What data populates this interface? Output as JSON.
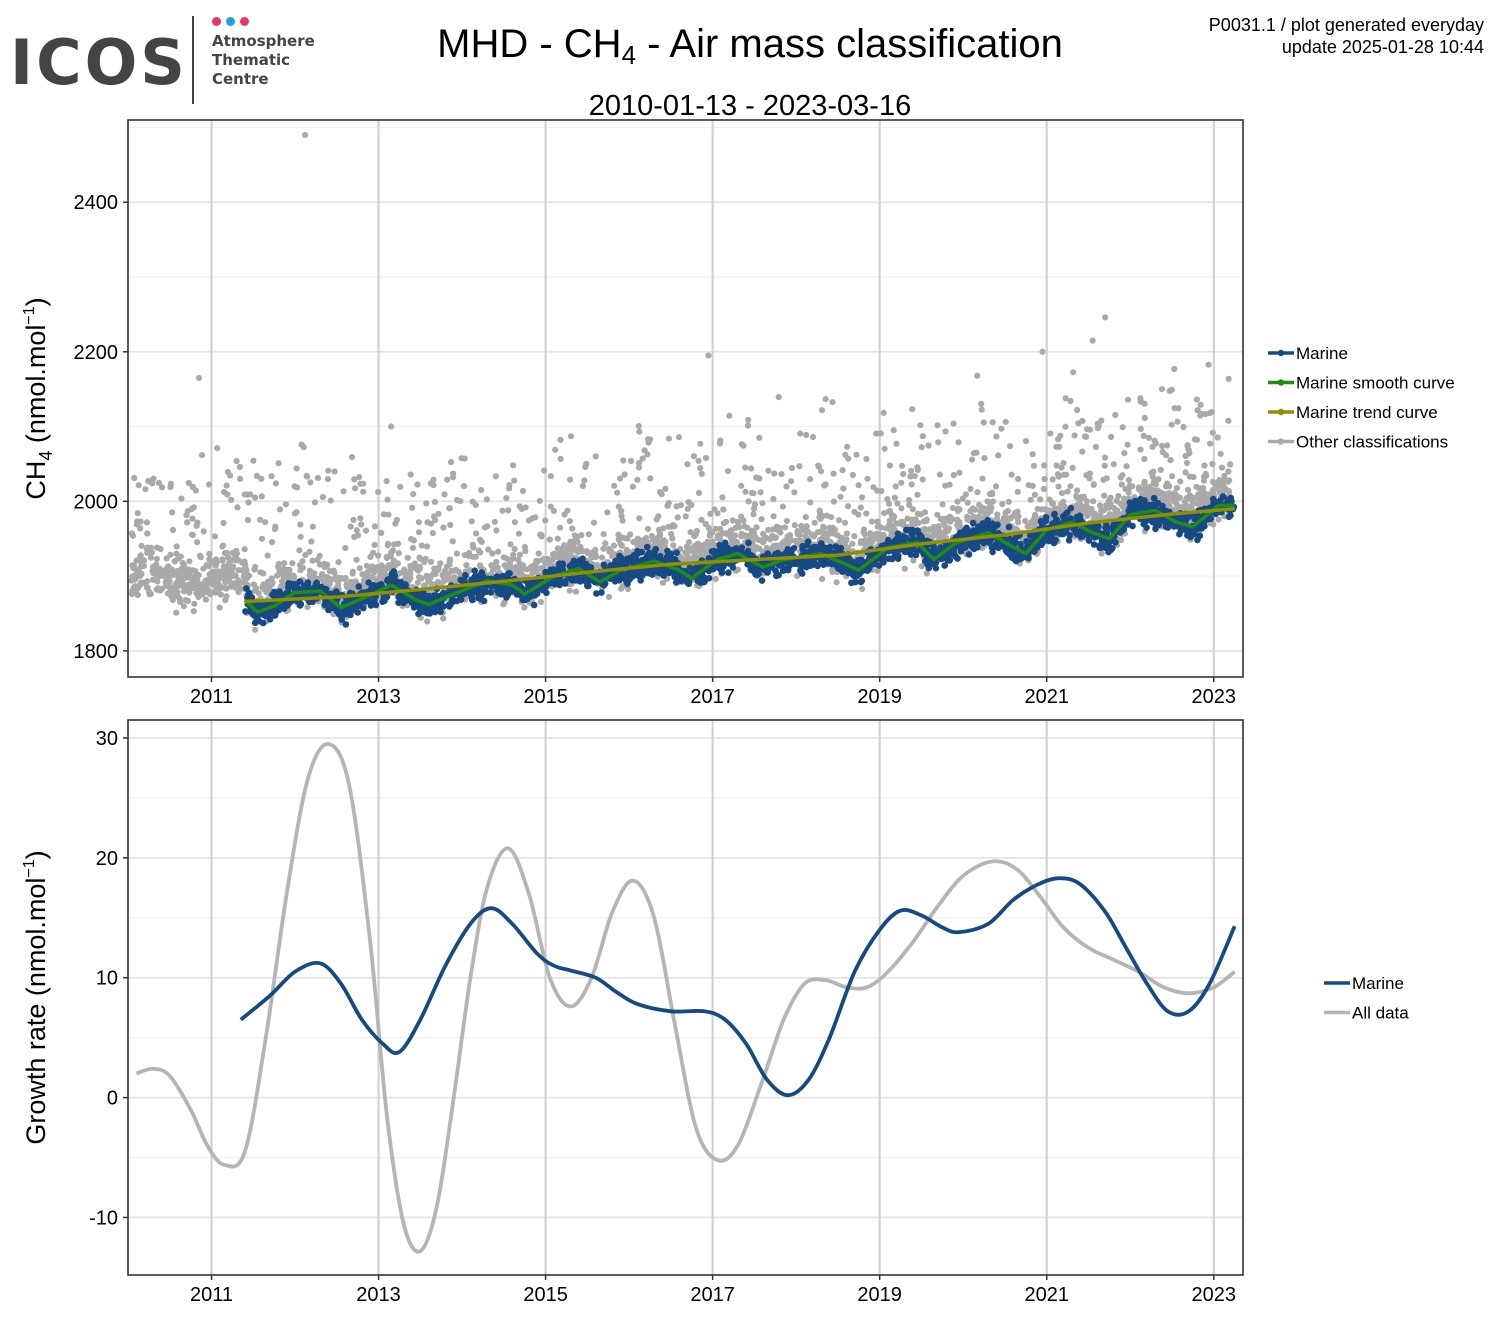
{
  "header": {
    "logo": {
      "word": "ICOS",
      "line1": "Atmosphere",
      "line2": "Thematic",
      "line3": "Centre",
      "dot_colors": [
        "#e8336e",
        "#1ba1e2",
        "#e8336e"
      ]
    },
    "title_pre": "MHD - CH",
    "title_sub": "4",
    "title_post": " - Air mass classification",
    "subtitle": "2010-01-13 - 2023-03-16",
    "info_line1": "P0031.1 / plot generated everyday",
    "info_line2": "update  2025-01-28 10:44"
  },
  "chart_data": [
    {
      "type": "scatter",
      "title": "MHD - CH4 - Air mass classification",
      "subtitle": "2010-01-13 - 2023-03-16",
      "ylabel_pre": "CH",
      "ylabel_sub": "4",
      "ylabel_post": " (nmol.mol",
      "ylabel_sup": "−1",
      "ylabel_end": ")",
      "xlim": [
        2010.0,
        2023.35
      ],
      "ylim": [
        1765,
        2510
      ],
      "x_ticks": [
        2011,
        2013,
        2015,
        2017,
        2019,
        2021,
        2023
      ],
      "x_tick_labels": [
        "2011",
        "2013",
        "2015",
        "2017",
        "2019",
        "2021",
        "2023"
      ],
      "y_ticks": [
        1800,
        2000,
        2200,
        2400
      ],
      "y_tick_labels": [
        "1800",
        "2000",
        "2200",
        "2400"
      ],
      "grid": true,
      "legend_position": "right",
      "series": [
        {
          "name": "Marine",
          "color": "#174a85",
          "kind": "points",
          "x_range": [
            2011.4,
            2023.25
          ],
          "band_halfwidth": 22,
          "trend_y": [
            [
              2011.4,
              1866
            ],
            [
              2012.5,
              1872
            ],
            [
              2013.5,
              1882
            ],
            [
              2014.5,
              1893
            ],
            [
              2015.5,
              1905
            ],
            [
              2016.5,
              1916
            ],
            [
              2017.5,
              1922
            ],
            [
              2018.5,
              1928
            ],
            [
              2019.5,
              1943
            ],
            [
              2020.5,
              1955
            ],
            [
              2021.5,
              1971
            ],
            [
              2022.5,
              1983
            ],
            [
              2023.25,
              1990
            ]
          ]
        },
        {
          "name": "Marine smooth curve",
          "color": "#1f8c14",
          "kind": "line",
          "points": [
            [
              2011.4,
              1868
            ],
            [
              2011.55,
              1852
            ],
            [
              2011.75,
              1860
            ],
            [
              2012.0,
              1878
            ],
            [
              2012.3,
              1880
            ],
            [
              2012.55,
              1858
            ],
            [
              2012.85,
              1872
            ],
            [
              2013.15,
              1888
            ],
            [
              2013.45,
              1868
            ],
            [
              2013.6,
              1862
            ],
            [
              2013.9,
              1876
            ],
            [
              2014.3,
              1894
            ],
            [
              2014.6,
              1888
            ],
            [
              2014.75,
              1876
            ],
            [
              2015.1,
              1900
            ],
            [
              2015.4,
              1910
            ],
            [
              2015.65,
              1892
            ],
            [
              2015.9,
              1908
            ],
            [
              2016.3,
              1920
            ],
            [
              2016.6,
              1908
            ],
            [
              2016.75,
              1897
            ],
            [
              2017.05,
              1922
            ],
            [
              2017.3,
              1930
            ],
            [
              2017.6,
              1912
            ],
            [
              2017.85,
              1922
            ],
            [
              2018.3,
              1930
            ],
            [
              2018.55,
              1918
            ],
            [
              2018.75,
              1908
            ],
            [
              2019.1,
              1938
            ],
            [
              2019.45,
              1945
            ],
            [
              2019.65,
              1922
            ],
            [
              2019.9,
              1944
            ],
            [
              2020.3,
              1958
            ],
            [
              2020.55,
              1942
            ],
            [
              2020.75,
              1930
            ],
            [
              2021.0,
              1962
            ],
            [
              2021.3,
              1972
            ],
            [
              2021.55,
              1958
            ],
            [
              2021.75,
              1950
            ],
            [
              2022.0,
              1982
            ],
            [
              2022.3,
              1988
            ],
            [
              2022.55,
              1972
            ],
            [
              2022.75,
              1966
            ],
            [
              2023.05,
              1994
            ],
            [
              2023.25,
              1995
            ]
          ]
        },
        {
          "name": "Marine trend curve",
          "color": "#8f8f00",
          "kind": "line",
          "points": [
            [
              2011.4,
              1866
            ],
            [
              2012.5,
              1872
            ],
            [
              2013.5,
              1882
            ],
            [
              2014.5,
              1893
            ],
            [
              2015.5,
              1905
            ],
            [
              2016.5,
              1916
            ],
            [
              2017.5,
              1922
            ],
            [
              2018.5,
              1928
            ],
            [
              2019.5,
              1943
            ],
            [
              2020.5,
              1955
            ],
            [
              2021.5,
              1971
            ],
            [
              2022.5,
              1983
            ],
            [
              2023.25,
              1990
            ]
          ]
        },
        {
          "name": "Other classifications",
          "color": "#a9a9a9",
          "kind": "points",
          "x_range": [
            2010.04,
            2023.2
          ],
          "outliers": [
            [
              2012.12,
              2490
            ],
            [
              2021.7,
              2246
            ],
            [
              2021.55,
              2215
            ],
            [
              2016.95,
              2195
            ],
            [
              2020.95,
              2200
            ],
            [
              2010.85,
              2165
            ],
            [
              2013.15,
              2100
            ]
          ]
        }
      ]
    },
    {
      "type": "line",
      "ylabel_pre": "Growth rate (nmol.mol",
      "ylabel_sup": "−1",
      "ylabel_end": ")",
      "xlim": [
        2010.0,
        2023.35
      ],
      "ylim": [
        -14.8,
        31.5
      ],
      "x_ticks": [
        2011,
        2013,
        2015,
        2017,
        2019,
        2021,
        2023
      ],
      "x_tick_labels": [
        "2011",
        "2013",
        "2015",
        "2017",
        "2019",
        "2021",
        "2023"
      ],
      "y_ticks": [
        -10,
        0,
        10,
        20,
        30
      ],
      "y_tick_labels": [
        "-10",
        "0",
        "10",
        "20",
        "30"
      ],
      "grid": true,
      "legend_position": "right",
      "series": [
        {
          "name": "Marine",
          "color": "#174a85",
          "points": [
            [
              2011.35,
              6.5
            ],
            [
              2011.7,
              8.5
            ],
            [
              2012.0,
              10.5
            ],
            [
              2012.3,
              11.2
            ],
            [
              2012.55,
              9.5
            ],
            [
              2012.8,
              6.5
            ],
            [
              2013.05,
              4.5
            ],
            [
              2013.25,
              3.8
            ],
            [
              2013.5,
              6.5
            ],
            [
              2013.8,
              11.0
            ],
            [
              2014.1,
              14.5
            ],
            [
              2014.35,
              15.8
            ],
            [
              2014.6,
              14.5
            ],
            [
              2014.9,
              12.0
            ],
            [
              2015.1,
              11.0
            ],
            [
              2015.3,
              10.6
            ],
            [
              2015.6,
              10.0
            ],
            [
              2015.85,
              8.8
            ],
            [
              2016.1,
              7.8
            ],
            [
              2016.5,
              7.2
            ],
            [
              2016.9,
              7.2
            ],
            [
              2017.15,
              6.5
            ],
            [
              2017.4,
              4.5
            ],
            [
              2017.65,
              1.5
            ],
            [
              2017.9,
              0.2
            ],
            [
              2018.15,
              1.5
            ],
            [
              2018.4,
              5.0
            ],
            [
              2018.7,
              10.5
            ],
            [
              2019.0,
              14.0
            ],
            [
              2019.25,
              15.6
            ],
            [
              2019.5,
              15.2
            ],
            [
              2019.75,
              14.2
            ],
            [
              2019.95,
              13.8
            ],
            [
              2020.3,
              14.5
            ],
            [
              2020.6,
              16.5
            ],
            [
              2020.9,
              17.8
            ],
            [
              2021.15,
              18.3
            ],
            [
              2021.4,
              17.8
            ],
            [
              2021.7,
              15.5
            ],
            [
              2021.95,
              12.5
            ],
            [
              2022.2,
              9.5
            ],
            [
              2022.45,
              7.2
            ],
            [
              2022.7,
              7.2
            ],
            [
              2022.95,
              9.5
            ],
            [
              2023.25,
              14.3
            ]
          ]
        },
        {
          "name": "All data",
          "color": "#b5b5b5",
          "points": [
            [
              2010.1,
              2.0
            ],
            [
              2010.3,
              2.4
            ],
            [
              2010.5,
              1.8
            ],
            [
              2010.75,
              -1.0
            ],
            [
              2010.95,
              -4.0
            ],
            [
              2011.15,
              -5.6
            ],
            [
              2011.4,
              -4.5
            ],
            [
              2011.65,
              5.0
            ],
            [
              2011.9,
              17.0
            ],
            [
              2012.15,
              26.5
            ],
            [
              2012.4,
              29.5
            ],
            [
              2012.65,
              26.0
            ],
            [
              2012.9,
              13.0
            ],
            [
              2013.1,
              -1.5
            ],
            [
              2013.3,
              -10.5
            ],
            [
              2013.5,
              -12.8
            ],
            [
              2013.7,
              -9.0
            ],
            [
              2013.9,
              0.0
            ],
            [
              2014.1,
              10.0
            ],
            [
              2014.3,
              17.5
            ],
            [
              2014.55,
              20.8
            ],
            [
              2014.8,
              17.0
            ],
            [
              2015.05,
              10.0
            ],
            [
              2015.3,
              7.6
            ],
            [
              2015.55,
              10.0
            ],
            [
              2015.8,
              15.5
            ],
            [
              2016.05,
              18.1
            ],
            [
              2016.3,
              15.0
            ],
            [
              2016.55,
              6.0
            ],
            [
              2016.8,
              -2.5
            ],
            [
              2017.05,
              -5.2
            ],
            [
              2017.3,
              -4.0
            ],
            [
              2017.6,
              1.5
            ],
            [
              2017.85,
              6.5
            ],
            [
              2018.1,
              9.5
            ],
            [
              2018.35,
              9.8
            ],
            [
              2018.6,
              9.2
            ],
            [
              2018.85,
              9.2
            ],
            [
              2019.1,
              10.5
            ],
            [
              2019.4,
              13.0
            ],
            [
              2019.7,
              16.0
            ],
            [
              2020.0,
              18.5
            ],
            [
              2020.35,
              19.7
            ],
            [
              2020.65,
              19.0
            ],
            [
              2020.95,
              16.5
            ],
            [
              2021.2,
              14.2
            ],
            [
              2021.5,
              12.5
            ],
            [
              2021.8,
              11.5
            ],
            [
              2022.1,
              10.5
            ],
            [
              2022.4,
              9.2
            ],
            [
              2022.7,
              8.7
            ],
            [
              2023.0,
              9.2
            ],
            [
              2023.25,
              10.5
            ]
          ]
        }
      ]
    }
  ]
}
